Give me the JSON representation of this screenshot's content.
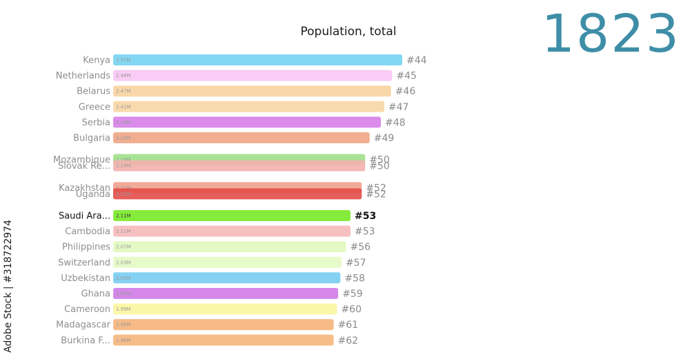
{
  "title": "Population, total",
  "year": "1823",
  "watermark": "Adobe Stock | #318722974",
  "chart_data": {
    "type": "bar",
    "orientation": "horizontal",
    "title": "Population, total",
    "year": "1823",
    "xlim": [
      0,
      2.8
    ],
    "entries": [
      {
        "name": "Kenya",
        "value": 2.57,
        "label": "2.57M",
        "rank": "#44",
        "slot": 0,
        "color": "#74d3f1",
        "highlight": false
      },
      {
        "name": "Netherlands",
        "value": 2.48,
        "label": "2.48M",
        "rank": "#45",
        "slot": 1,
        "color": "#f7c6f3",
        "highlight": false
      },
      {
        "name": "Belarus",
        "value": 2.47,
        "label": "2.47M",
        "rank": "#46",
        "slot": 2,
        "color": "#f8d3a0",
        "highlight": false
      },
      {
        "name": "Greece",
        "value": 2.41,
        "label": "2.41M",
        "rank": "#47",
        "slot": 3,
        "color": "#f8d6a4",
        "highlight": false
      },
      {
        "name": "Serbia",
        "value": 2.38,
        "label": "2.38M",
        "rank": "#48",
        "slot": 4,
        "color": "#d77ee8",
        "highlight": false
      },
      {
        "name": "Bulgaria",
        "value": 2.28,
        "label": "2.28M",
        "rank": "#49",
        "slot": 5,
        "color": "#f0a585",
        "highlight": false
      },
      {
        "name": "Mozambique",
        "value": 2.24,
        "label": "2.24M",
        "rank": "#50",
        "slot": 6.4,
        "color": "#9ee08a",
        "highlight": false
      },
      {
        "name": "Slovak Re...",
        "value": 2.24,
        "label": "2.24M",
        "rank": "#50",
        "slot": 6.8,
        "color": "#f4b0ae",
        "highlight": false
      },
      {
        "name": "Kazakhstan",
        "value": 2.21,
        "label": "2.21M",
        "rank": "#52",
        "slot": 8.2,
        "color": "#f1a18e",
        "highlight": false
      },
      {
        "name": "Uganda",
        "value": 2.21,
        "label": "2.21M",
        "rank": "#52",
        "slot": 8.6,
        "color": "#e44c49",
        "highlight": false
      },
      {
        "name": "Saudi Ara...",
        "value": 2.11,
        "label": "2.11M",
        "rank": "#53",
        "slot": 10,
        "color": "#86ec3c",
        "highlight": true
      },
      {
        "name": "Cambodia",
        "value": 2.11,
        "label": "2.11M",
        "rank": "#53",
        "slot": 11,
        "color": "#f6b9b9",
        "highlight": false
      },
      {
        "name": "Philippines",
        "value": 2.07,
        "label": "2.07M",
        "rank": "#56",
        "slot": 12,
        "color": "#e1f8bd",
        "highlight": false
      },
      {
        "name": "Switzerland",
        "value": 2.03,
        "label": "2.03M",
        "rank": "#57",
        "slot": 13,
        "color": "#e3f9c4",
        "highlight": false
      },
      {
        "name": "Uzbekistan",
        "value": 2.02,
        "label": "2.02M",
        "rank": "#58",
        "slot": 14,
        "color": "#78ccf1",
        "highlight": false
      },
      {
        "name": "Ghana",
        "value": 2.0,
        "label": "2.00M",
        "rank": "#59",
        "slot": 15,
        "color": "#d07be7",
        "highlight": false
      },
      {
        "name": "Cameroon",
        "value": 1.99,
        "label": "1.99M",
        "rank": "#60",
        "slot": 16,
        "color": "#fbf6a0",
        "highlight": false
      },
      {
        "name": "Madagascar",
        "value": 1.96,
        "label": "1.96M",
        "rank": "#61",
        "slot": 17,
        "color": "#f5b27a",
        "highlight": false
      },
      {
        "name": "Burkina F...",
        "value": 1.96,
        "label": "1.96M",
        "rank": "#62",
        "slot": 18,
        "color": "#f6b67c",
        "highlight": false
      }
    ]
  }
}
